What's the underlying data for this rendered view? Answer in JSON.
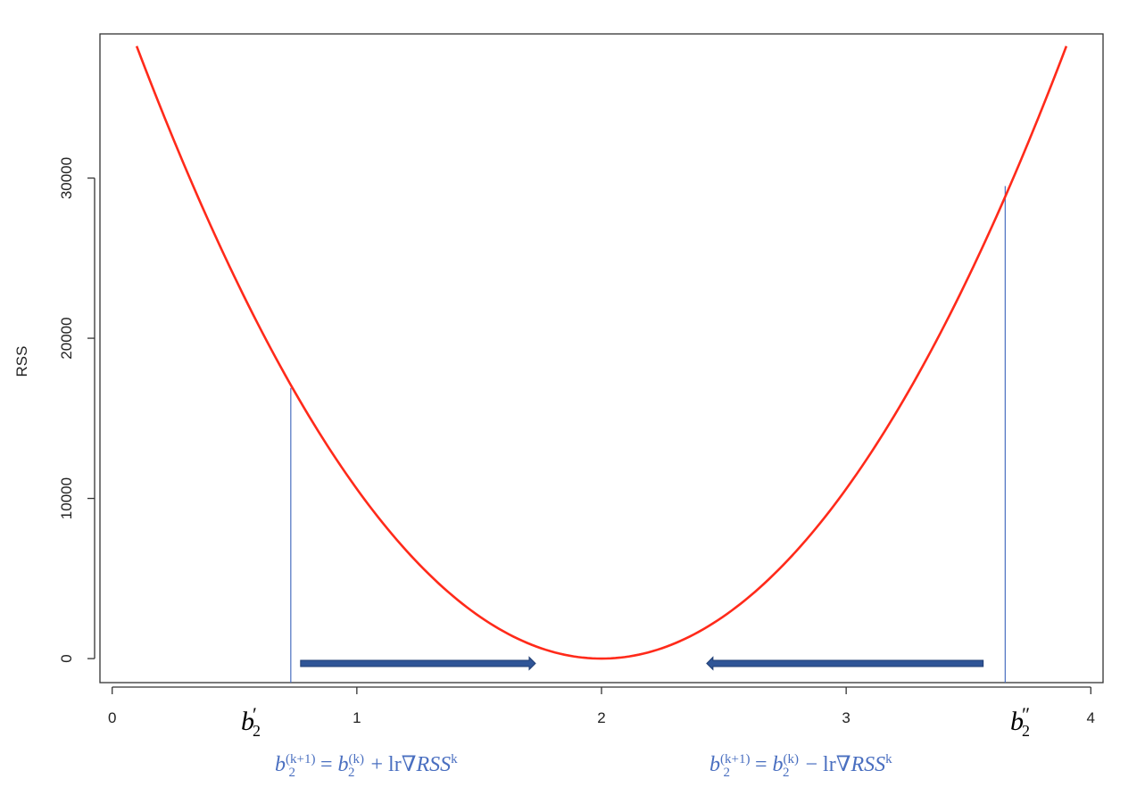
{
  "chart_data": {
    "type": "line",
    "title": "",
    "xlabel": "",
    "ylabel": "RSS",
    "xlim": [
      -0.05,
      4.05
    ],
    "ylim": [
      -1500,
      39000
    ],
    "x_ticks": [
      "0",
      "1",
      "2",
      "3",
      "4"
    ],
    "y_ticks": [
      "0",
      "10000",
      "20000",
      "30000"
    ],
    "grid": false,
    "series": [
      {
        "color": "#ff2a1a",
        "x": [
          0.1,
          0.3,
          0.5,
          0.75,
          1.0,
          1.25,
          1.5,
          1.75,
          2.0,
          2.25,
          2.5,
          2.75,
          3.0,
          3.25,
          3.5,
          3.65,
          3.9
        ],
        "y": [
          38000,
          30500,
          23700,
          16900,
          10500,
          5900,
          2600,
          700,
          0,
          700,
          2600,
          5900,
          10500,
          16900,
          23700,
          29500,
          38000
        ]
      }
    ],
    "vertical_lines": [
      {
        "x": 0.73,
        "y_top": 16900,
        "color": "#4a6fc0"
      },
      {
        "x": 3.65,
        "y_top": 29500,
        "color": "#4a6fc0"
      }
    ],
    "arrows": [
      {
        "from": 0.77,
        "to": 1.73,
        "y": -300,
        "direction": "right",
        "color": "#2f5597"
      },
      {
        "from": 3.56,
        "to": 2.43,
        "y": -300,
        "direction": "left",
        "color": "#2f5597"
      }
    ]
  },
  "annotations": {
    "b_prime": {
      "base": "b",
      "sub": "2",
      "mark": "′"
    },
    "b_double_prime": {
      "base": "b",
      "sub": "2",
      "mark": "″"
    },
    "formula_left": {
      "lhs_base": "b",
      "lhs_sub": "2",
      "lhs_sup": "(k+1)",
      "eq": " = ",
      "rhs_base": "b",
      "rhs_sub": "2",
      "rhs_sup": "(k)",
      "op": " + ",
      "term": "lr∇",
      "term_var": "RSS",
      "term_sup": "k"
    },
    "formula_right": {
      "lhs_base": "b",
      "lhs_sub": "2",
      "lhs_sup": "(k+1)",
      "eq": " = ",
      "rhs_base": "b",
      "rhs_sub": "2",
      "rhs_sup": "(k)",
      "op": " − ",
      "term": "lr∇",
      "term_var": "RSS",
      "term_sup": "k"
    }
  },
  "colors": {
    "curve": "#ff2a1a",
    "marker_line": "#4a6fc0",
    "arrow": "#2f5597",
    "formula": "#4a6fc0",
    "axis": "#333333"
  }
}
